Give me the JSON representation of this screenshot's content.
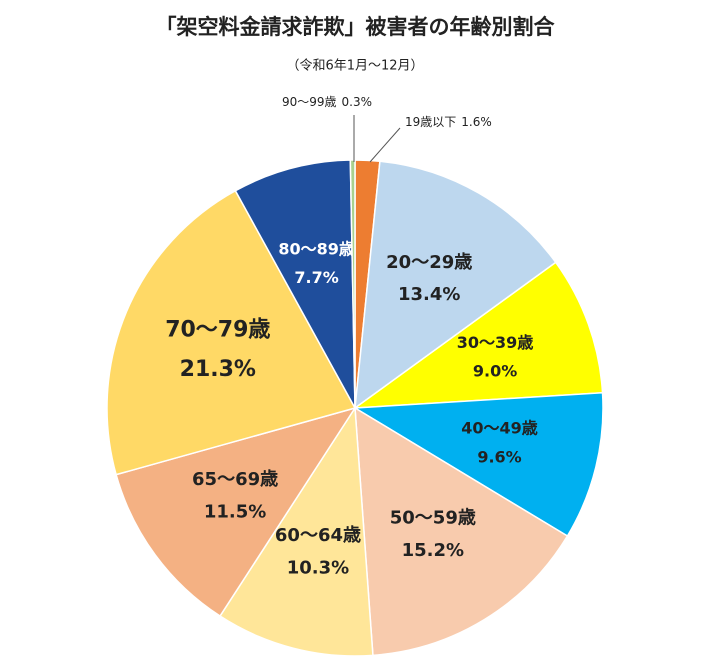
{
  "chart_data": {
    "type": "pie",
    "title": "「架空料金請求詐欺」被害者の年齢別割合",
    "subtitle": "（令和6年1月～12月）",
    "categories": [
      "19歳以下",
      "20～29歳",
      "30～39歳",
      "40～49歳",
      "50～59歳",
      "60～64歳",
      "65～69歳",
      "70～79歳",
      "80～89歳",
      "90～99歳"
    ],
    "values": [
      1.6,
      13.4,
      9.0,
      9.6,
      15.2,
      10.3,
      11.5,
      21.3,
      7.7,
      0.3
    ],
    "value_labels": [
      "1.6%",
      "13.4%",
      "9.0%",
      "9.6%",
      "15.2%",
      "10.3%",
      "11.5%",
      "21.3%",
      "7.7%",
      "0.3%"
    ],
    "colors": [
      "#ed7d31",
      "#bdd7ee",
      "#ffff00",
      "#00b0f0",
      "#f8cbad",
      "#ffe699",
      "#f4b183",
      "#ffd966",
      "#1f4e9c",
      "#a9d18e"
    ]
  }
}
